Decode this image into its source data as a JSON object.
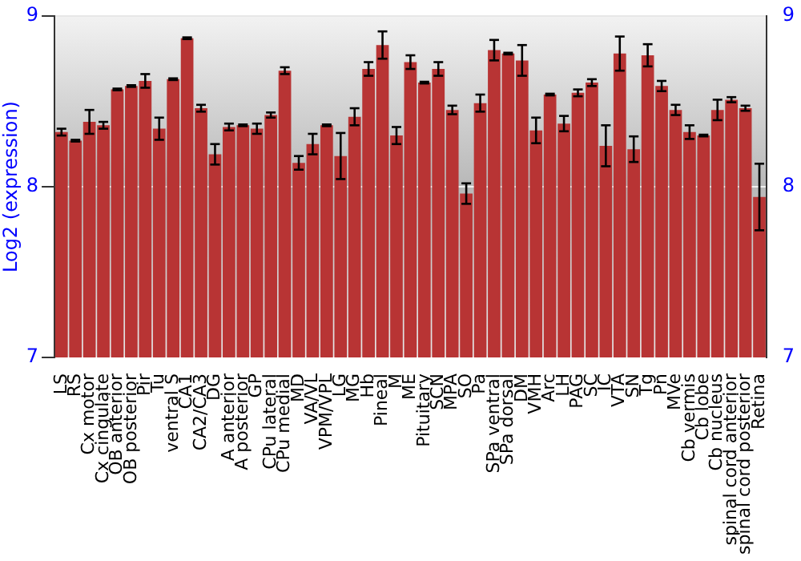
{
  "chart_data": {
    "type": "bar",
    "ylabel": "Log2 (expression)",
    "categories": [
      "LS",
      "RS",
      "Cx motor",
      "Cx cingulate",
      "OB anterior",
      "OB posterior",
      "Pir",
      "Tu",
      "ventral S",
      "CA1",
      "CA2/CA3",
      "DG",
      "A anterior",
      "A posterior",
      "GP",
      "CPu lateral",
      "CPu medial",
      "MD",
      "VA/VL",
      "VPM/VPL",
      "LG",
      "MG",
      "Hb",
      "Pineal",
      "M",
      "ME",
      "Pituitary",
      "SCN",
      "MPA",
      "SO",
      "Pa",
      "SPa ventral",
      "SPa dorsal",
      "DM",
      "VMH",
      "Arc",
      "LH",
      "PAG",
      "SC",
      "IC",
      "VTA",
      "SN",
      "Tg",
      "Pn",
      "MVe",
      "Cb vermis",
      "Cb lobe",
      "Cb nucleus",
      "spinal cord anterior",
      "spinal cord posterior",
      "Retina"
    ],
    "values": [
      8.32,
      8.27,
      8.38,
      8.36,
      8.57,
      8.59,
      8.62,
      8.34,
      8.63,
      8.87,
      8.46,
      8.19,
      8.35,
      8.36,
      8.34,
      8.42,
      8.68,
      8.14,
      8.25,
      8.36,
      8.18,
      8.41,
      8.69,
      8.83,
      8.3,
      8.73,
      8.61,
      8.69,
      8.45,
      7.96,
      8.49,
      8.8,
      8.78,
      8.74,
      8.33,
      8.54,
      8.37,
      8.55,
      8.61,
      8.24,
      8.78,
      8.22,
      8.77,
      8.59,
      8.45,
      8.32,
      8.3,
      8.45,
      8.51,
      8.46,
      7.94
    ],
    "errors": [
      0.02,
      0.005,
      0.07,
      0.02,
      0.005,
      0.005,
      0.04,
      0.065,
      0.005,
      0.005,
      0.02,
      0.06,
      0.02,
      0.005,
      0.03,
      0.015,
      0.02,
      0.04,
      0.06,
      0.005,
      0.135,
      0.05,
      0.04,
      0.08,
      0.05,
      0.04,
      0.005,
      0.04,
      0.025,
      0.06,
      0.05,
      0.06,
      0.005,
      0.09,
      0.075,
      0.005,
      0.045,
      0.02,
      0.02,
      0.12,
      0.1,
      0.075,
      0.065,
      0.03,
      0.03,
      0.04,
      0.005,
      0.06,
      0.015,
      0.015,
      0.195
    ],
    "color": "#b83434",
    "ylim": [
      7,
      9
    ],
    "yticks": [
      7,
      8,
      9
    ],
    "y2lim": [
      7,
      9
    ],
    "y2ticks": [
      7,
      8,
      9
    ],
    "grid": "y",
    "legend": false
  }
}
